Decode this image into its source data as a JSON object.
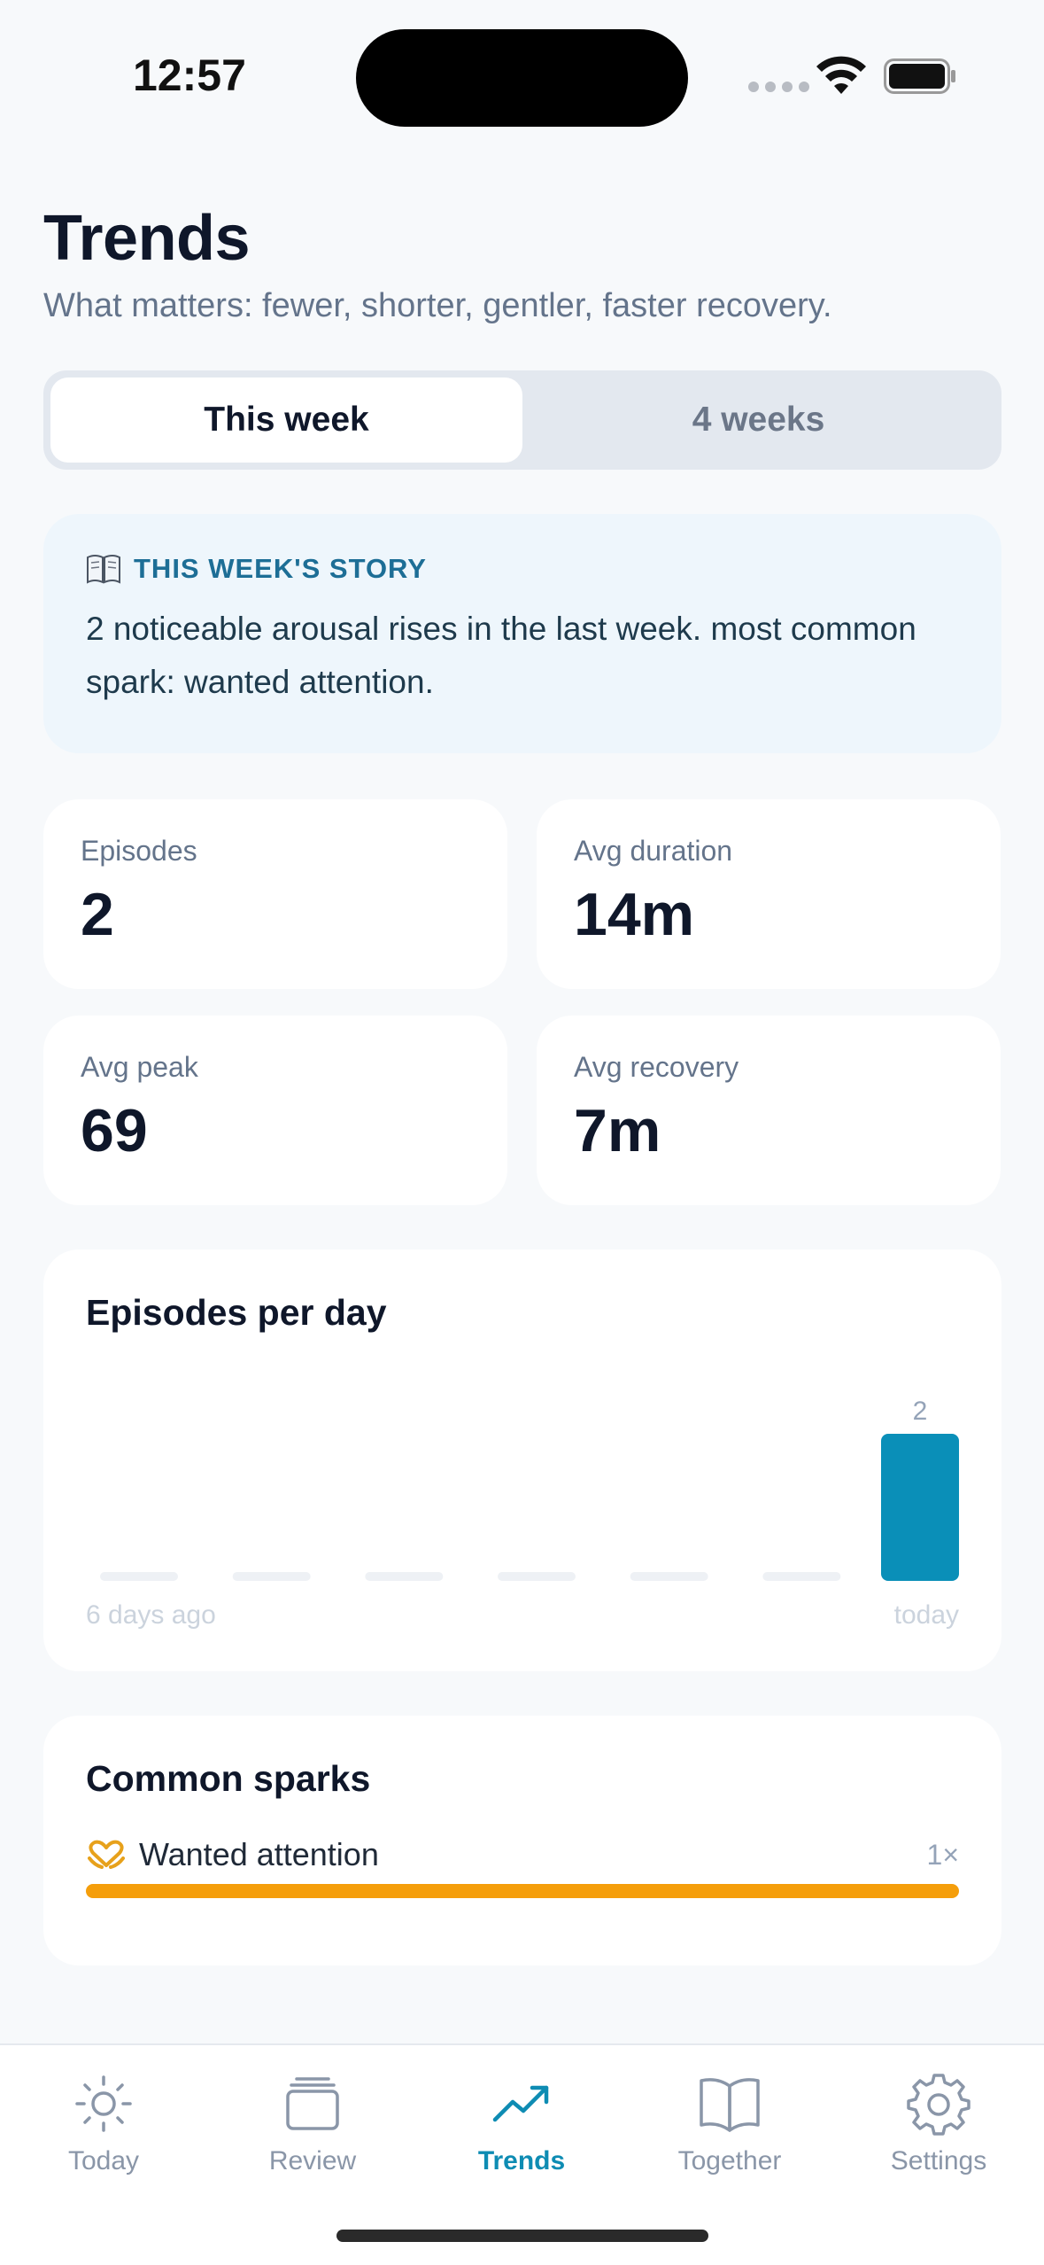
{
  "status_bar": {
    "time": "12:57"
  },
  "header": {
    "title": "Trends",
    "subtitle": "What matters: fewer, shorter, gentler, faster recovery."
  },
  "segments": [
    {
      "label": "This week",
      "active": true
    },
    {
      "label": "4 weeks",
      "active": false
    }
  ],
  "story": {
    "icon": "book-icon",
    "heading": "THIS WEEK'S STORY",
    "text": "2 noticeable arousal rises in the last week. most common spark: wanted attention."
  },
  "stats": [
    {
      "label": "Episodes",
      "value": "2"
    },
    {
      "label": "Avg duration",
      "value": "14m"
    },
    {
      "label": "Avg peak",
      "value": "69"
    },
    {
      "label": "Avg recovery",
      "value": "7m"
    }
  ],
  "chart_data": {
    "type": "bar",
    "title": "Episodes per day",
    "categories": [
      "6 days ago",
      "",
      "",
      "",
      "",
      "",
      "today"
    ],
    "values": [
      0,
      0,
      0,
      0,
      0,
      0,
      2
    ],
    "data_labels": [
      "",
      "",
      "",
      "",
      "",
      "",
      "2"
    ],
    "x_start_label": "6 days ago",
    "x_end_label": "today",
    "ylim": [
      0,
      2
    ],
    "grid": false,
    "bar_color": "#0A8FB8",
    "empty_bar_color": "#EEF1F5"
  },
  "sparks": {
    "title": "Common sparks",
    "items": [
      {
        "icon": "heart-hands-icon",
        "label": "Wanted attention",
        "count": "1×",
        "share": 1.0
      }
    ],
    "bar_color": "#F59E0B"
  },
  "tabs": [
    {
      "label": "Today",
      "icon": "sun-icon",
      "active": false
    },
    {
      "label": "Review",
      "icon": "stack-icon",
      "active": false
    },
    {
      "label": "Trends",
      "icon": "trend-icon",
      "active": true
    },
    {
      "label": "Together",
      "icon": "book-open-icon",
      "active": false
    },
    {
      "label": "Settings",
      "icon": "gear-icon",
      "active": false
    }
  ],
  "colors": {
    "accent": "#0E8CB3",
    "background": "#F7F9FB"
  }
}
